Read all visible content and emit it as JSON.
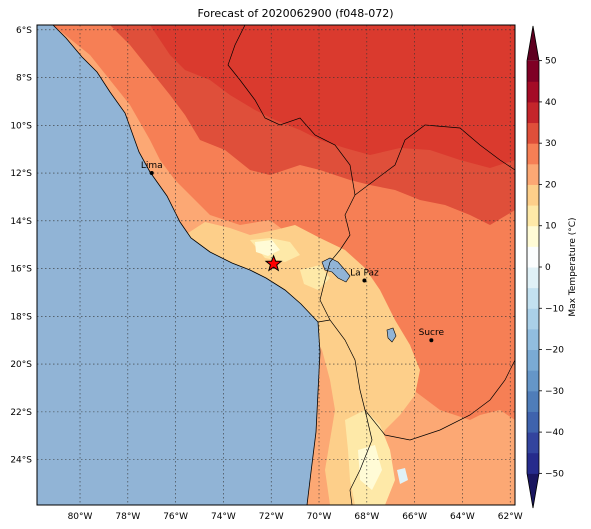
{
  "title": "Forecast of 2020062900 (f048-072)",
  "map": {
    "lon_range": [
      -81.8,
      -61.8
    ],
    "lat_range": [
      -25.9,
      -5.8
    ],
    "lon_ticks": [
      "80°W",
      "78°W",
      "76°W",
      "74°W",
      "72°W",
      "70°W",
      "68°W",
      "66°W",
      "64°W",
      "62°W"
    ],
    "lat_ticks": [
      "6°S",
      "8°S",
      "10°S",
      "12°S",
      "14°S",
      "16°S",
      "18°S",
      "20°S",
      "22°S",
      "24°S"
    ],
    "ocean_color": "#91b4d6",
    "cities": [
      {
        "name": "Lima",
        "lon": -77.0,
        "lat": -12.0
      },
      {
        "name": "La Paz",
        "lon": -68.1,
        "lat": -16.5
      },
      {
        "name": "Sucre",
        "lon": -65.3,
        "lat": -19.0
      }
    ],
    "marker": {
      "icon": "red-star",
      "lon": -71.9,
      "lat": -15.8
    }
  },
  "colorbar": {
    "label": "Max Temperature (°C)",
    "ticks": [
      "50",
      "40",
      "30",
      "20",
      "10",
      "0",
      "−10",
      "−20",
      "−30",
      "−40",
      "−50"
    ],
    "bands": [
      {
        "from": -55,
        "to": -50,
        "color": "#1a1660"
      },
      {
        "from": -50,
        "to": -45,
        "color": "#262b8c"
      },
      {
        "from": -45,
        "to": -40,
        "color": "#33449e"
      },
      {
        "from": -40,
        "to": -35,
        "color": "#3f63ad"
      },
      {
        "from": -35,
        "to": -30,
        "color": "#4f7db9"
      },
      {
        "from": -30,
        "to": -25,
        "color": "#6596c8"
      },
      {
        "from": -25,
        "to": -20,
        "color": "#7aaad4"
      },
      {
        "from": -20,
        "to": -15,
        "color": "#91bddf"
      },
      {
        "from": -15,
        "to": -10,
        "color": "#aad0e8"
      },
      {
        "from": -10,
        "to": -5,
        "color": "#c3e1f0"
      },
      {
        "from": -5,
        "to": 0,
        "color": "#e0f1f7"
      },
      {
        "from": 0,
        "to": 5,
        "color": "#fbfdfe"
      },
      {
        "from": 5,
        "to": 10,
        "color": "#fffbd6"
      },
      {
        "from": 10,
        "to": 15,
        "color": "#fee9a8"
      },
      {
        "from": 15,
        "to": 20,
        "color": "#fdcf8a"
      },
      {
        "from": 20,
        "to": 25,
        "color": "#fca874"
      },
      {
        "from": 25,
        "to": 30,
        "color": "#f67f55"
      },
      {
        "from": 30,
        "to": 35,
        "color": "#df4f3a"
      },
      {
        "from": 35,
        "to": 40,
        "color": "#c4252b"
      },
      {
        "from": 40,
        "to": 45,
        "color": "#a40b26"
      },
      {
        "from": 45,
        "to": 50,
        "color": "#7f0025"
      },
      {
        "from": 50,
        "to": 55,
        "color": "#5e0020"
      }
    ]
  }
}
